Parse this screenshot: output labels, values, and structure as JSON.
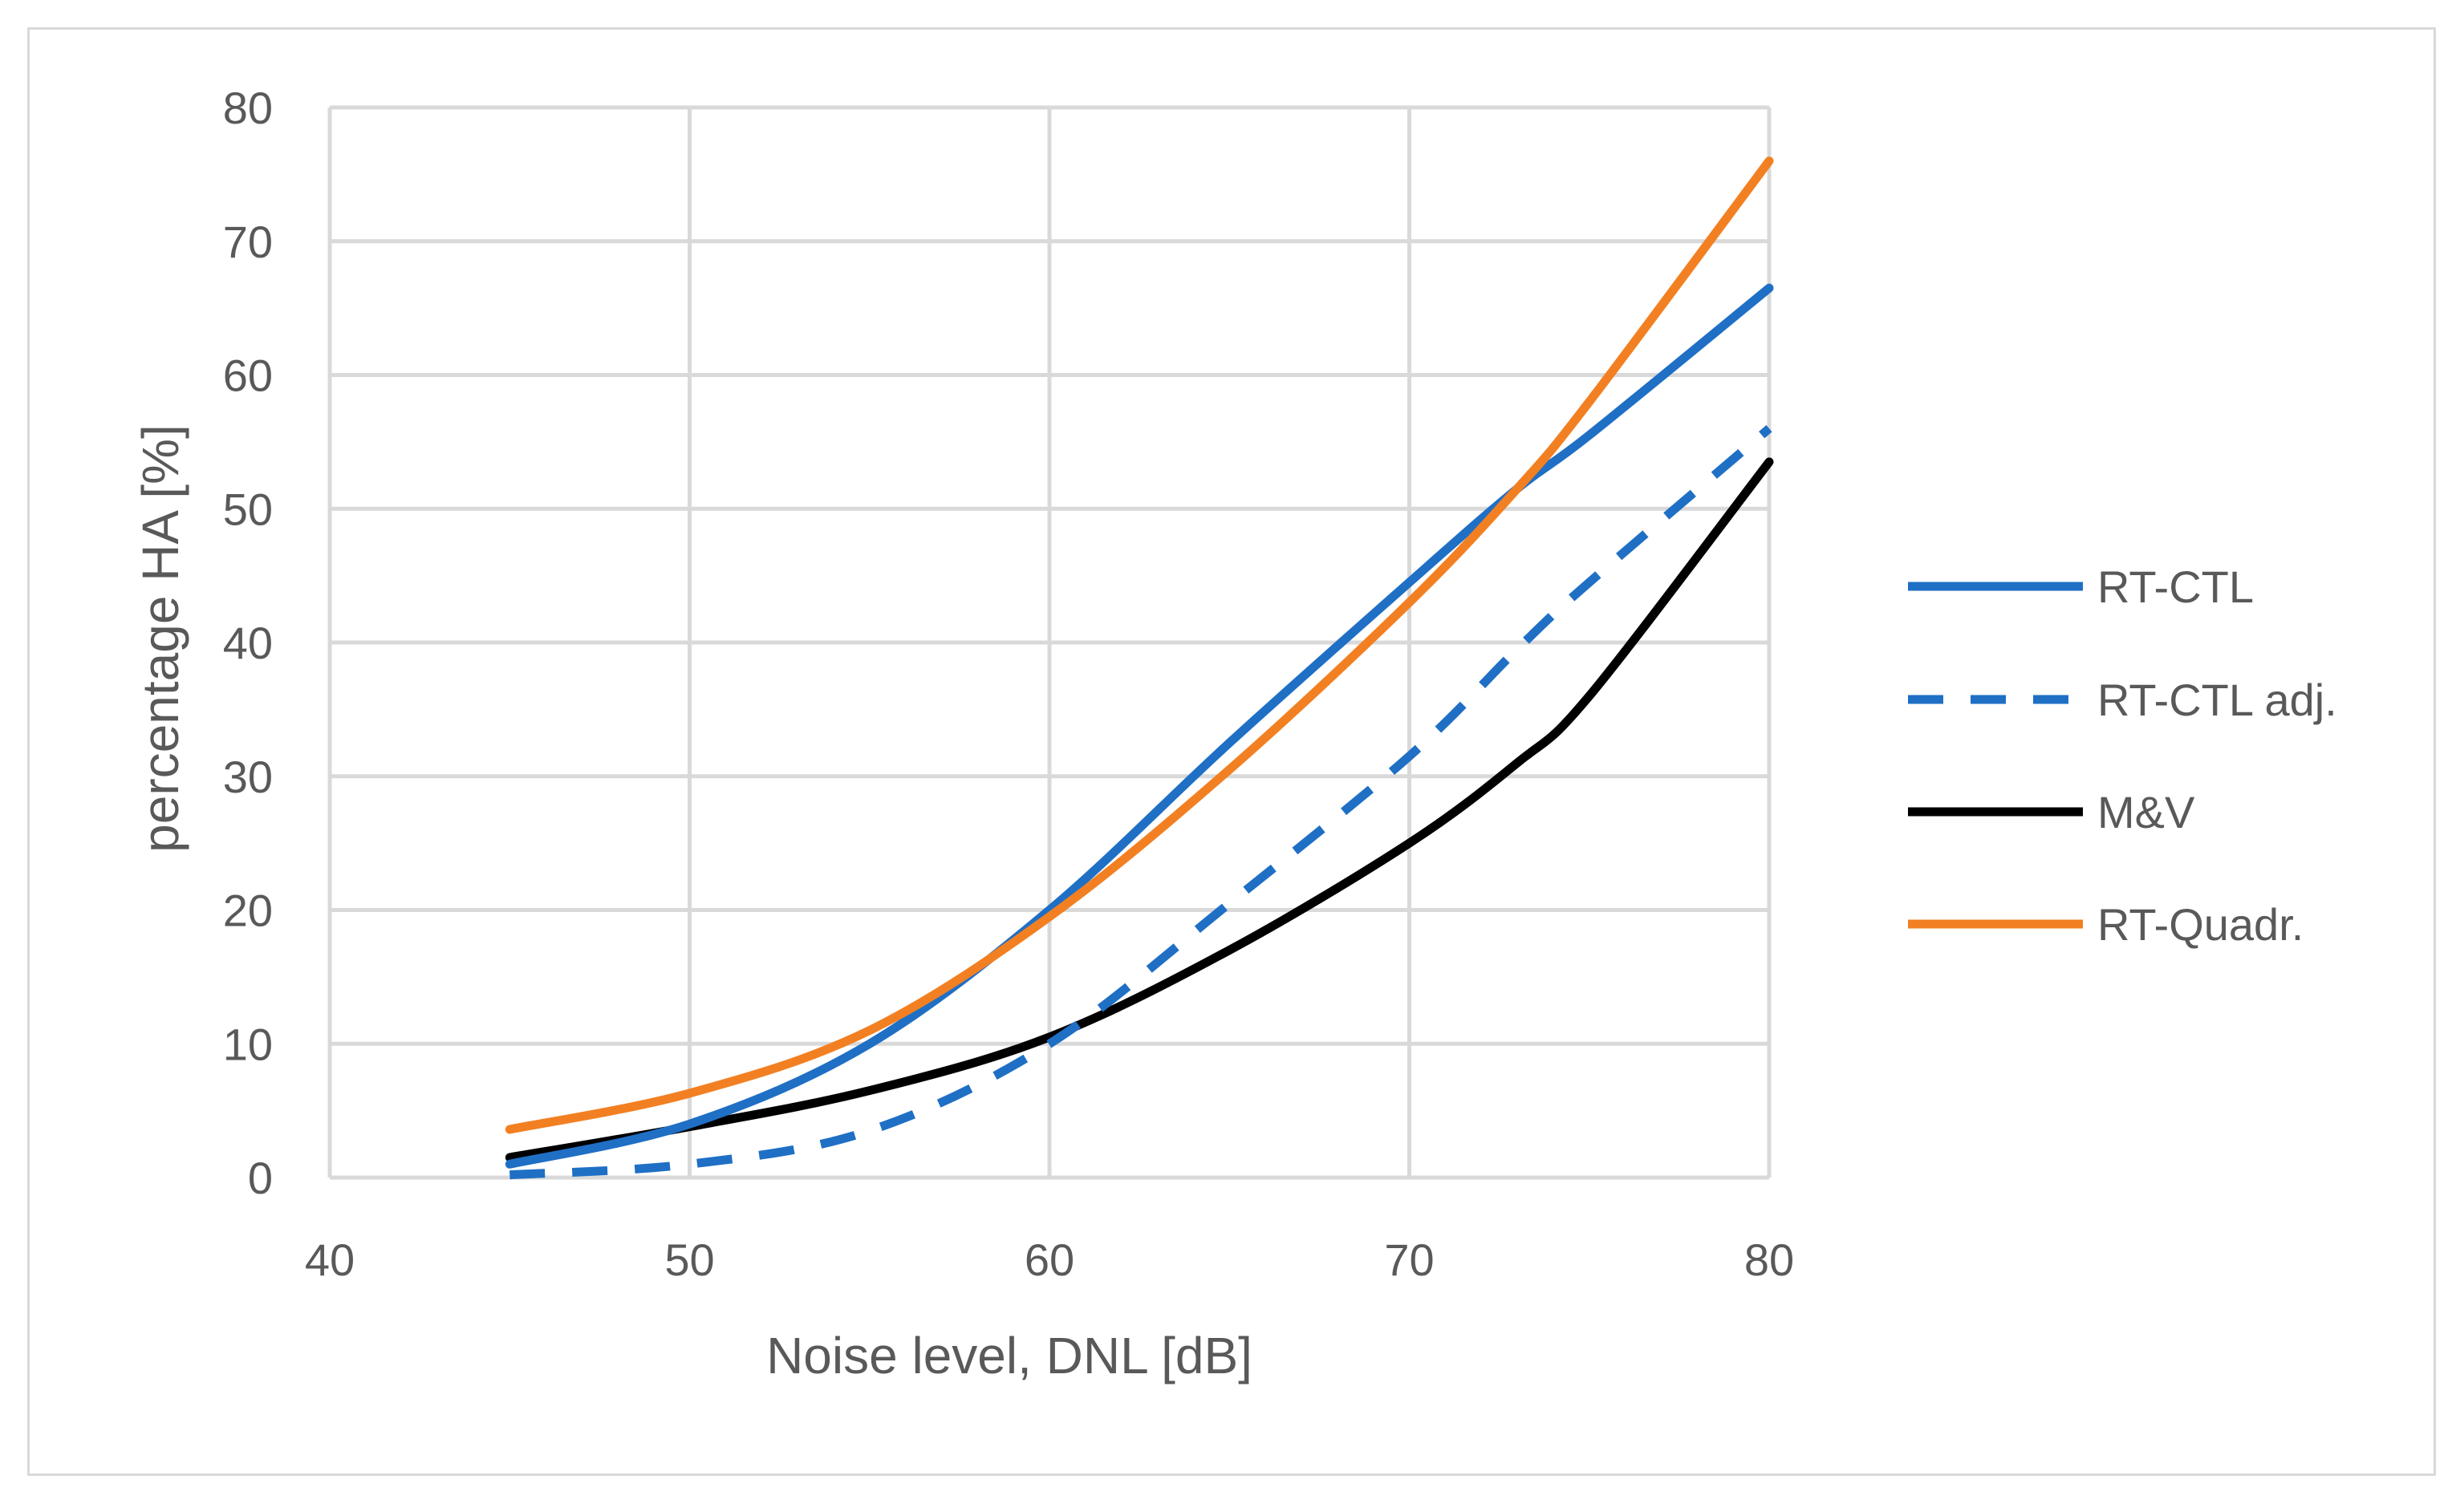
{
  "chart_data": {
    "type": "line",
    "xlabel": "Noise level, DNL [dB]",
    "ylabel": "percentage HA [%]",
    "xlim": [
      40,
      80
    ],
    "ylim": [
      0,
      80
    ],
    "x_ticks": [
      "40",
      "50",
      "60",
      "70",
      "80"
    ],
    "y_ticks": [
      "0",
      "10",
      "20",
      "30",
      "40",
      "50",
      "60",
      "70",
      "80"
    ],
    "grid": true,
    "legend_position": "right",
    "x": [
      45,
      50,
      55,
      60,
      65,
      70,
      73,
      75,
      80
    ],
    "series": [
      {
        "name": "RT-CTL",
        "color": "#1f6fc5",
        "dash": "solid",
        "values": [
          1.0,
          4.0,
          10.0,
          20.0,
          32.5,
          44.5,
          51.5,
          55.5,
          66.5
        ]
      },
      {
        "name": "RT-CTL adj.",
        "color": "#1f6fc5",
        "dash": "dashed",
        "values": [
          0.2,
          1.0,
          3.5,
          10.0,
          20.5,
          31.5,
          39.5,
          44.5,
          56.0
        ]
      },
      {
        "name": "M&V",
        "color": "#000000",
        "dash": "solid",
        "values": [
          1.5,
          3.8,
          6.5,
          10.5,
          17.0,
          25.0,
          31.0,
          36.0,
          53.5
        ]
      },
      {
        "name": "RT-Quadr.",
        "color": "#f28022",
        "dash": "solid",
        "values": [
          3.6,
          6.3,
          11.0,
          19.5,
          30.5,
          43.0,
          51.5,
          58.0,
          76.0
        ]
      }
    ]
  }
}
